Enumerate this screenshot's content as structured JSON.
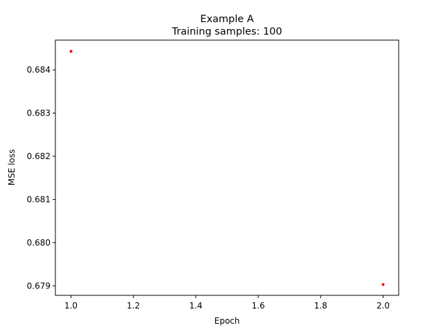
{
  "chart_data": {
    "type": "scatter",
    "title": "Example A",
    "subtitle": "Training samples: 100",
    "xlabel": "Epoch",
    "ylabel": "MSE loss",
    "xlim": [
      0.95,
      2.05
    ],
    "ylim": [
      0.67878,
      0.68469
    ],
    "xticks": [
      1.0,
      1.2,
      1.4,
      1.6,
      1.8,
      2.0
    ],
    "xtick_labels": [
      "1.0",
      "1.2",
      "1.4",
      "1.6",
      "1.8",
      "2.0"
    ],
    "yticks": [
      0.679,
      0.68,
      0.681,
      0.682,
      0.683,
      0.684
    ],
    "ytick_labels": [
      "0.679",
      "0.680",
      "0.681",
      "0.682",
      "0.683",
      "0.684"
    ],
    "grid": false,
    "legend": "none",
    "series": [
      {
        "x": [
          1.0,
          2.0
        ],
        "y": [
          0.68443,
          0.67903
        ],
        "color": "#ff0000"
      }
    ]
  }
}
